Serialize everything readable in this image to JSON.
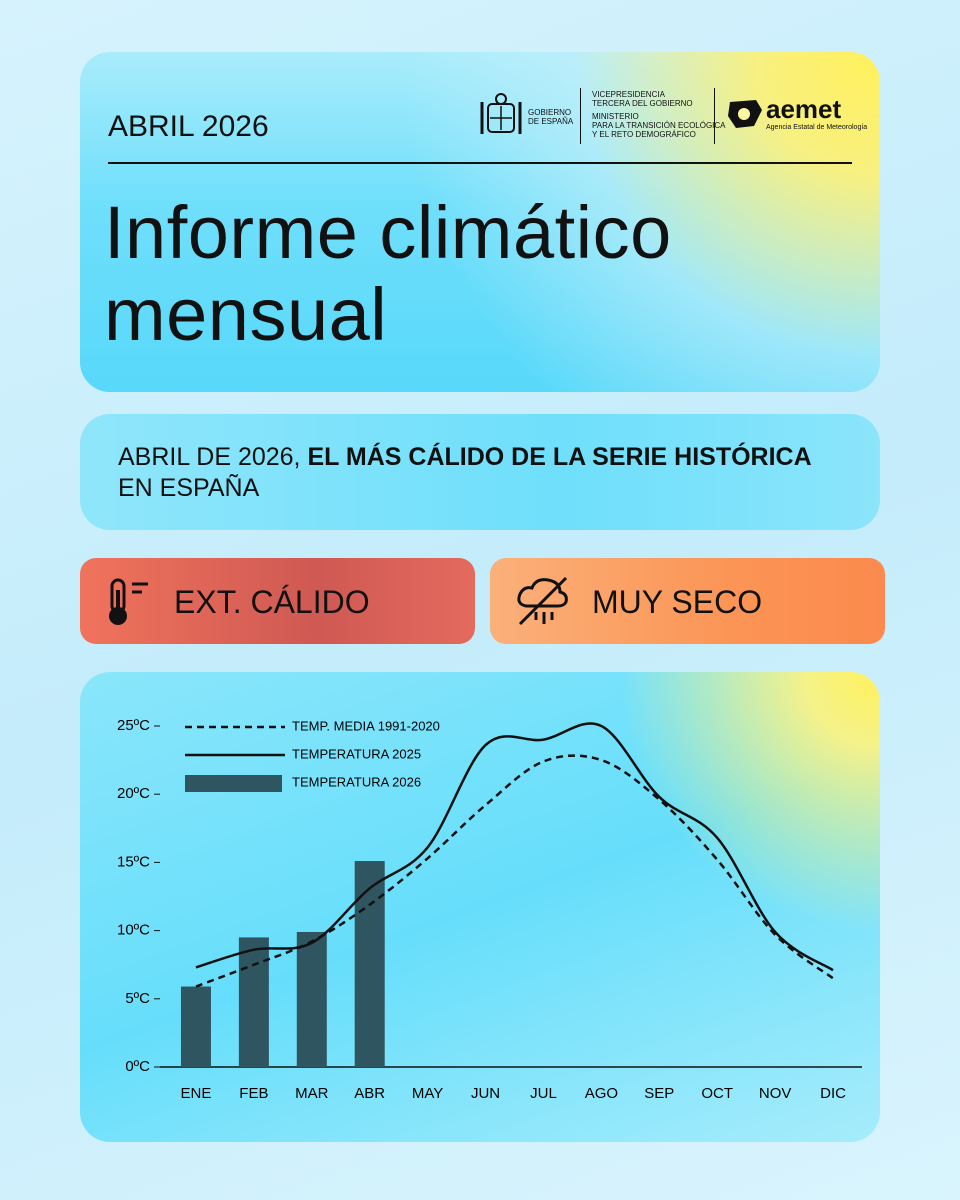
{
  "header": {
    "date": "ABRIL 2026",
    "gov_line1": "GOBIERNO",
    "gov_line2": "DE ESPAÑA",
    "ministry_lines": [
      "VICEPRESIDENCIA",
      "TERCERA DEL GOBIERNO",
      "MINISTERIO",
      "PARA LA TRANSICIÓN ECOLÓGICA",
      "Y EL RETO DEMOGRÁFICO"
    ],
    "agency": "aemet",
    "agency_full": "Agencia Estatal de Meteorología",
    "title_lines": [
      "Informe climático",
      "mensual"
    ]
  },
  "summary": {
    "part1": "ABRIL DE 2026, ",
    "bold": "EL MÁS CÁLIDO DE LA SERIE HISTÓRICA",
    "part2": "EN ESPAÑA"
  },
  "badges": [
    "EXT. CÁLIDO",
    "MUY SECO"
  ],
  "chart_data": {
    "type": "bar-line",
    "categories": [
      "ENE",
      "FEB",
      "MAR",
      "ABR",
      "MAY",
      "JUN",
      "JUL",
      "AGO",
      "SEP",
      "OCT",
      "NOV",
      "DIC"
    ],
    "ylim": [
      0,
      25
    ],
    "yticks": [
      {
        "value": 0,
        "label": "0ºC"
      },
      {
        "value": 5,
        "label": "5ºC"
      },
      {
        "value": 10,
        "label": "10ºC"
      },
      {
        "value": 15,
        "label": "15ºC"
      },
      {
        "value": 20,
        "label": "20ºC"
      },
      {
        "value": 25,
        "label": "25ºC"
      }
    ],
    "legend": "top-left",
    "series": [
      {
        "name": "TEMP. MEDIA 1991-2020",
        "kind": "dashed-line",
        "color": "#111111",
        "values": [
          5.9,
          7.5,
          9.2,
          11.9,
          15.3,
          19.2,
          22.4,
          22.5,
          19.6,
          15.2,
          9.7,
          6.5
        ]
      },
      {
        "name": "TEMPERATURA 2025",
        "kind": "line",
        "color": "#111111",
        "values": [
          7.3,
          8.6,
          9.1,
          13.1,
          16.1,
          23.6,
          24.0,
          25.0,
          19.8,
          16.8,
          9.9,
          7.1
        ]
      },
      {
        "name": "TEMPERATURA 2026",
        "kind": "bar",
        "color": "#2f5560",
        "values": [
          5.9,
          9.5,
          9.9,
          15.1,
          null,
          null,
          null,
          null,
          null,
          null,
          null,
          null
        ]
      }
    ]
  }
}
